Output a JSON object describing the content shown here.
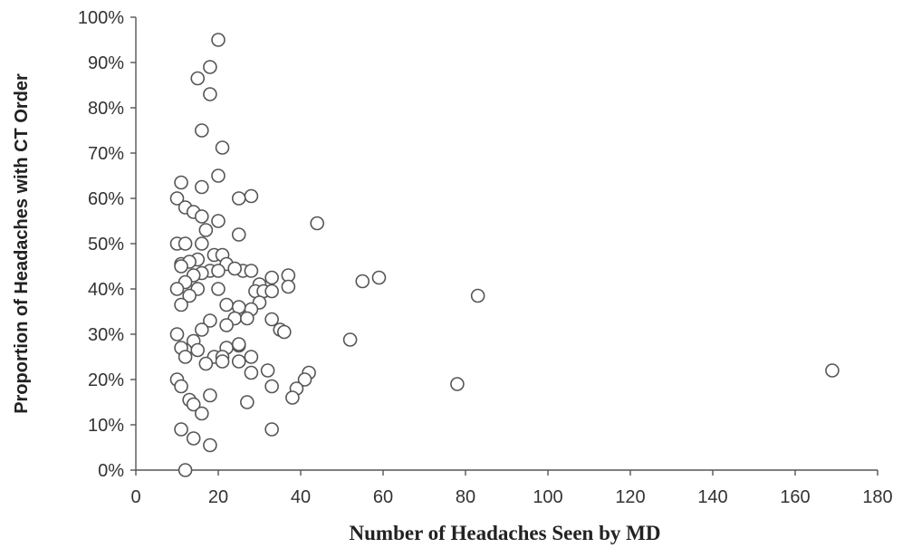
{
  "chart_data": {
    "type": "scatter",
    "title": "",
    "xlabel": "Number of Headaches Seen by MD",
    "ylabel": "Proportion of Headaches with CT Order",
    "xlim": [
      0,
      180
    ],
    "ylim": [
      0,
      1
    ],
    "x_ticks": [
      0,
      20,
      40,
      60,
      80,
      100,
      120,
      140,
      160,
      180
    ],
    "x_tick_labels": [
      "0",
      "20",
      "40",
      "60",
      "80",
      "100",
      "120",
      "140",
      "160",
      "180"
    ],
    "y_ticks": [
      0,
      0.1,
      0.2,
      0.3,
      0.4,
      0.5,
      0.6,
      0.7,
      0.8,
      0.9,
      1.0
    ],
    "y_tick_labels": [
      "0%",
      "10%",
      "20%",
      "30%",
      "40%",
      "50%",
      "60%",
      "70%",
      "80%",
      "90%",
      "100%"
    ],
    "grid": false,
    "legend": "none",
    "marker": "open-circle",
    "series": [
      {
        "points": [
          [
            20,
            0.95
          ],
          [
            18,
            0.89
          ],
          [
            15,
            0.865
          ],
          [
            18,
            0.83
          ],
          [
            16,
            0.75
          ],
          [
            21,
            0.712
          ],
          [
            20,
            0.65
          ],
          [
            11,
            0.635
          ],
          [
            16,
            0.625
          ],
          [
            28,
            0.605
          ],
          [
            10,
            0.6
          ],
          [
            25,
            0.6
          ],
          [
            12,
            0.58
          ],
          [
            14,
            0.57
          ],
          [
            16,
            0.56
          ],
          [
            20,
            0.55
          ],
          [
            17,
            0.53
          ],
          [
            44,
            0.545
          ],
          [
            25,
            0.52
          ],
          [
            10,
            0.5
          ],
          [
            12,
            0.5
          ],
          [
            16,
            0.5
          ],
          [
            19,
            0.475
          ],
          [
            21,
            0.475
          ],
          [
            15,
            0.465
          ],
          [
            11,
            0.455
          ],
          [
            13,
            0.46
          ],
          [
            22,
            0.455
          ],
          [
            11,
            0.45
          ],
          [
            18,
            0.44
          ],
          [
            20,
            0.44
          ],
          [
            26,
            0.44
          ],
          [
            16,
            0.435
          ],
          [
            28,
            0.44
          ],
          [
            24,
            0.445
          ],
          [
            14,
            0.43
          ],
          [
            37,
            0.43
          ],
          [
            33,
            0.425
          ],
          [
            59,
            0.425
          ],
          [
            55,
            0.417
          ],
          [
            12,
            0.415
          ],
          [
            30,
            0.41
          ],
          [
            10,
            0.4
          ],
          [
            15,
            0.4
          ],
          [
            20,
            0.4
          ],
          [
            29,
            0.395
          ],
          [
            31,
            0.395
          ],
          [
            33,
            0.395
          ],
          [
            37,
            0.405
          ],
          [
            13,
            0.385
          ],
          [
            83,
            0.385
          ],
          [
            22,
            0.365
          ],
          [
            11,
            0.365
          ],
          [
            30,
            0.37
          ],
          [
            28,
            0.355
          ],
          [
            25,
            0.36
          ],
          [
            18,
            0.33
          ],
          [
            24,
            0.335
          ],
          [
            27,
            0.335
          ],
          [
            33,
            0.333
          ],
          [
            22,
            0.32
          ],
          [
            16,
            0.31
          ],
          [
            35,
            0.31
          ],
          [
            36,
            0.305
          ],
          [
            10,
            0.3
          ],
          [
            14,
            0.285
          ],
          [
            52,
            0.288
          ],
          [
            25,
            0.275
          ],
          [
            12,
            0.265
          ],
          [
            11,
            0.27
          ],
          [
            15,
            0.265
          ],
          [
            22,
            0.27
          ],
          [
            25,
            0.278
          ],
          [
            19,
            0.25
          ],
          [
            12,
            0.25
          ],
          [
            21,
            0.25
          ],
          [
            28,
            0.25
          ],
          [
            25,
            0.24
          ],
          [
            17,
            0.235
          ],
          [
            21,
            0.24
          ],
          [
            28,
            0.215
          ],
          [
            32,
            0.22
          ],
          [
            42,
            0.215
          ],
          [
            41,
            0.2
          ],
          [
            10,
            0.2
          ],
          [
            78,
            0.19
          ],
          [
            169,
            0.22
          ],
          [
            11,
            0.185
          ],
          [
            33,
            0.185
          ],
          [
            39,
            0.18
          ],
          [
            18,
            0.165
          ],
          [
            38,
            0.16
          ],
          [
            13,
            0.155
          ],
          [
            14,
            0.145
          ],
          [
            27,
            0.15
          ],
          [
            16,
            0.125
          ],
          [
            11,
            0.09
          ],
          [
            33,
            0.09
          ],
          [
            14,
            0.07
          ],
          [
            18,
            0.055
          ],
          [
            12,
            0.0
          ]
        ]
      }
    ]
  }
}
